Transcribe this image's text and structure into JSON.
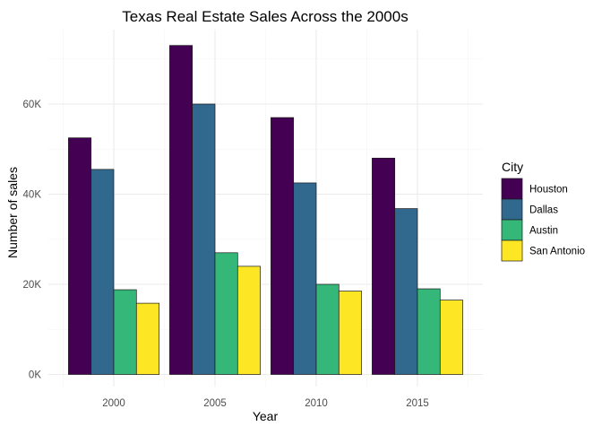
{
  "chart_data": {
    "type": "bar",
    "title": "Texas Real Estate Sales Across the 2000s",
    "xlabel": "Year",
    "ylabel": "Number of sales",
    "categories": [
      "2000",
      "2005",
      "2010",
      "2015"
    ],
    "series": [
      {
        "name": "Houston",
        "color": "#440154",
        "values": [
          52500,
          73000,
          57000,
          48000
        ]
      },
      {
        "name": "Dallas",
        "color": "#31688e",
        "values": [
          45500,
          60000,
          42500,
          36800
        ]
      },
      {
        "name": "Austin",
        "color": "#35b779",
        "values": [
          18800,
          27000,
          20000,
          19000
        ]
      },
      {
        "name": "San Antonio",
        "color": "#fde725",
        "values": [
          15800,
          24000,
          18500,
          16500
        ]
      }
    ],
    "yticks": [
      {
        "value": 0,
        "label": "0K"
      },
      {
        "value": 20000,
        "label": "20K"
      },
      {
        "value": 40000,
        "label": "40K"
      },
      {
        "value": 60000,
        "label": "60K"
      }
    ],
    "ylim": [
      0,
      76000
    ],
    "grid": true,
    "legend": {
      "title": "City",
      "placement": "right"
    }
  }
}
